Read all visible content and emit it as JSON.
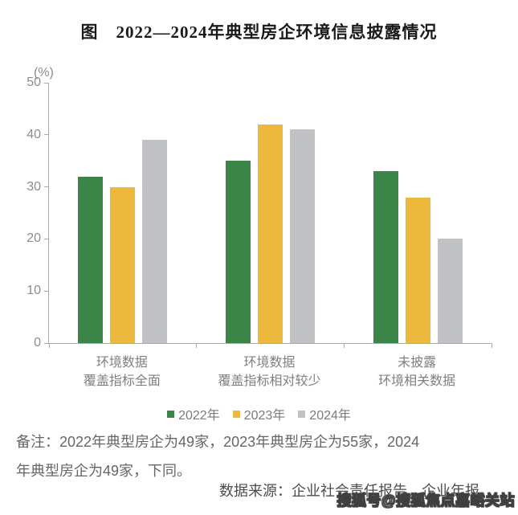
{
  "title": "图　2022—2024年典型房企环境信息披露情况",
  "chart_data": {
    "type": "bar",
    "title": "图 2022—2024年典型房企环境信息披露情况",
    "unit_label": "(%)",
    "categories": [
      "环境数据\n覆盖指标全面",
      "环境数据\n覆盖指标相对较少",
      "未披露\n环境相关数据"
    ],
    "series": [
      {
        "name": "2022年",
        "color": "#3a8547",
        "values": [
          32,
          35,
          33
        ]
      },
      {
        "name": "2023年",
        "color": "#ecb93c",
        "values": [
          30,
          42,
          28
        ]
      },
      {
        "name": "2024年",
        "color": "#c0c1c5",
        "values": [
          39,
          41,
          20
        ]
      }
    ],
    "ylabel": "(%)",
    "ylim": [
      0,
      50
    ],
    "ytick_step": 10,
    "yticks": [
      0,
      10,
      20,
      30,
      40,
      50
    ],
    "grid": false,
    "legend_position": "bottom"
  },
  "notes": {
    "remark": "备注：2022年典型房企为49家，2023年典型房企为55家，2024\n年典型房企为49家，下同。",
    "source": "数据来源：企业社会责任报告、企业年报。"
  },
  "watermark": "搜狐号@搜狐焦点嘉峪关站",
  "colors": {
    "axis": "#a9a9a9",
    "tick_text": "#8c8c8c",
    "category_text": "#7f7f7f",
    "series_2022": "#3a8547",
    "series_2023": "#ecb93c",
    "series_2024": "#c0c1c5"
  }
}
